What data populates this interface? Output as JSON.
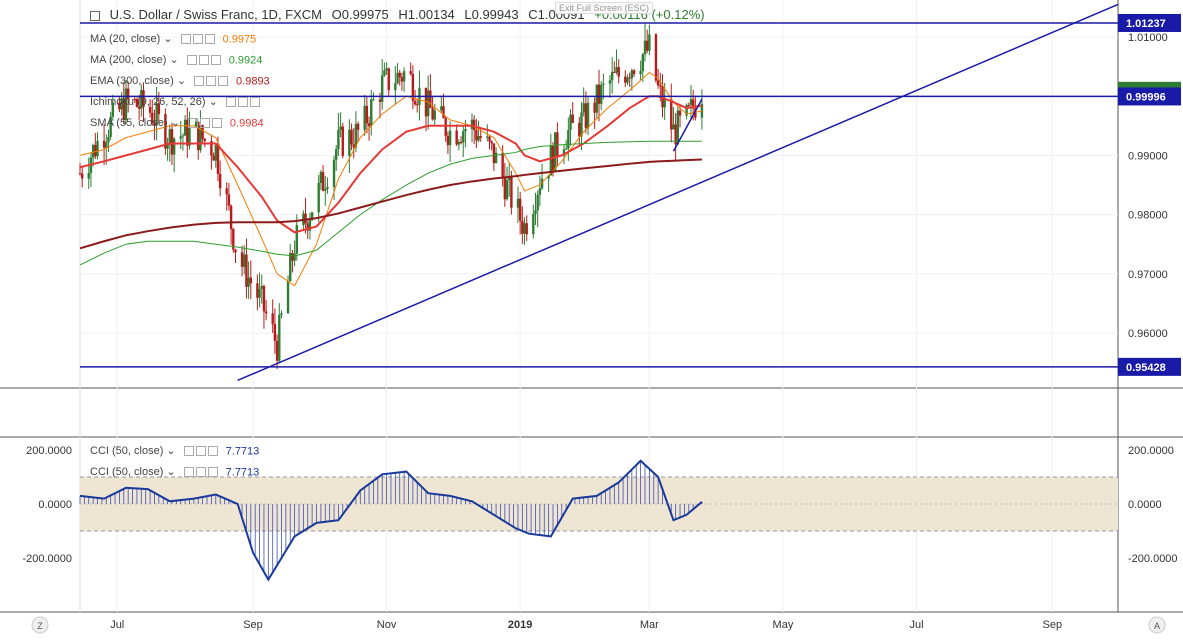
{
  "header": {
    "symbol": "U.S. Dollar / Swiss Franc, 1D, FXCM",
    "open": "O0.99975",
    "high": "H1.00134",
    "low": "L0.99943",
    "close": "C1.00091",
    "change": "+0.00116 (+0.12%)",
    "exit_hint": "Exit Full Screen (ESC)"
  },
  "studies": [
    {
      "name": "MA (20, close)",
      "value": "0.9975",
      "color": "#f57c00"
    },
    {
      "name": "MA (200, close)",
      "value": "0.9924",
      "color": "#2e9e2e"
    },
    {
      "name": "EMA (300, close)",
      "value": "0.9893",
      "color": "#b71c1c"
    },
    {
      "name": "Ichimoku (9, 26, 52, 26)",
      "value": "",
      "color": "#1e88e5"
    },
    {
      "name": "SMA (55, close)",
      "value": "0.9984",
      "color": "#e53935"
    }
  ],
  "cci_studies": [
    {
      "name": "CCI (50, close)",
      "value": "7.7713"
    },
    {
      "name": "CCI (50, close)",
      "value": "7.7713"
    }
  ],
  "price_badges": [
    {
      "label": "1.01237",
      "price": 1.01237,
      "bg": "#1a1aa8",
      "fg": "#ffffff"
    },
    {
      "label": "1.00091",
      "price": 1.00091,
      "bg": "#2e7d32",
      "fg": "#ffffff"
    },
    {
      "label": "0.99996",
      "price": 0.99996,
      "bg": "#1a1aa8",
      "fg": "#ffffff"
    },
    {
      "label": "0.95428",
      "price": 0.95428,
      "bg": "#1a1aa8",
      "fg": "#ffffff"
    }
  ],
  "axis_bottom": {
    "left_btn": "Z",
    "right_btn": "A"
  },
  "chart_data": {
    "type": "line",
    "price_axis": {
      "ticks": [
        1.01,
        1.0,
        0.99,
        0.98,
        0.97,
        0.96
      ],
      "tick_labels": [
        "1.01000",
        "1.00000",
        "0.99000",
        "0.98000",
        "0.97000",
        "0.96000"
      ]
    },
    "cci_axis": {
      "ticks": [
        200,
        0,
        -200
      ],
      "tick_labels": [
        "200.0000",
        "0.0000",
        "-200.0000"
      ],
      "band": [
        -100,
        100
      ]
    },
    "time_labels": [
      "Jul",
      "Sep",
      "Nov",
      "2019",
      "Mar",
      "May",
      "Jul",
      "Sep"
    ],
    "time_positions": [
      "2018-07-01",
      "2018-09-01",
      "2018-11-01",
      "2019-01-01",
      "2019-03-01",
      "2019-05-01",
      "2019-07-01",
      "2019-09-01"
    ],
    "horizontal_lines": [
      1.01237,
      0.99996,
      0.95428
    ],
    "trendlines": [
      {
        "from": [
          "2018-08-25",
          0.952
        ],
        "to": [
          "2019-10-01",
          1.0155
        ]
      },
      {
        "from": [
          "2019-03-12",
          0.9907
        ],
        "to": [
          "2019-03-25",
          0.9995
        ]
      }
    ],
    "close_series": {
      "dates": [
        "2018-06-14",
        "2018-06-25",
        "2018-07-05",
        "2018-07-15",
        "2018-07-25",
        "2018-08-05",
        "2018-08-15",
        "2018-08-25",
        "2018-09-05",
        "2018-09-12",
        "2018-09-20",
        "2018-09-30",
        "2018-10-10",
        "2018-10-20",
        "2018-10-30",
        "2018-11-10",
        "2018-11-20",
        "2018-11-30",
        "2018-12-10",
        "2018-12-20",
        "2018-12-30",
        "2019-01-03",
        "2019-01-10",
        "2019-01-20",
        "2019-01-30",
        "2019-02-10",
        "2019-02-20",
        "2019-03-01",
        "2019-03-05",
        "2019-03-12",
        "2019-03-18",
        "2019-03-25"
      ],
      "values": [
        0.987,
        0.994,
        0.999,
        0.998,
        0.993,
        0.994,
        0.991,
        0.973,
        0.965,
        0.958,
        0.975,
        0.983,
        0.992,
        0.994,
        1.002,
        1.004,
        0.998,
        0.994,
        0.995,
        0.99,
        0.981,
        0.978,
        0.986,
        0.993,
        0.996,
        1.002,
        1.005,
        1.008,
        1.001,
        0.994,
        0.996,
        1.0009
      ]
    },
    "series": [
      {
        "name": "MA (20, close)",
        "color": "#f57c00",
        "values": [
          0.99,
          0.991,
          0.993,
          0.994,
          0.995,
          0.995,
          0.993,
          0.985,
          0.976,
          0.97,
          0.968,
          0.975,
          0.986,
          0.993,
          0.997,
          1.0,
          0.999,
          0.996,
          0.995,
          0.993,
          0.987,
          0.984,
          0.985,
          0.989,
          0.994,
          0.998,
          1.001,
          1.004,
          1.003,
          0.999,
          0.997,
          0.9975
        ]
      },
      {
        "name": "SMA (55, close)",
        "color": "#e53935",
        "values": [
          0.988,
          0.989,
          0.99,
          0.991,
          0.992,
          0.992,
          0.992,
          0.988,
          0.983,
          0.979,
          0.977,
          0.978,
          0.982,
          0.987,
          0.991,
          0.994,
          0.995,
          0.995,
          0.995,
          0.994,
          0.992,
          0.99,
          0.989,
          0.99,
          0.992,
          0.995,
          0.998,
          1.0,
          1.0,
          0.999,
          0.998,
          0.9984
        ]
      },
      {
        "name": "MA (200, close)",
        "color": "#2e9e2e",
        "values": [
          0.9715,
          0.9735,
          0.975,
          0.9755,
          0.9755,
          0.9755,
          0.975,
          0.9745,
          0.9738,
          0.9733,
          0.973,
          0.974,
          0.977,
          0.98,
          0.9825,
          0.985,
          0.987,
          0.9885,
          0.9895,
          0.99,
          0.9905,
          0.991,
          0.9915,
          0.9918,
          0.992,
          0.9922,
          0.9923,
          0.9924,
          0.9924,
          0.9924,
          0.9924,
          0.9924
        ]
      },
      {
        "name": "EMA (300, close)",
        "color": "#8b1a1a",
        "values": [
          0.9743,
          0.9755,
          0.9765,
          0.9772,
          0.9778,
          0.9783,
          0.9786,
          0.9787,
          0.9787,
          0.9787,
          0.9789,
          0.9794,
          0.9802,
          0.9812,
          0.9822,
          0.9833,
          0.9842,
          0.985,
          0.9856,
          0.9861,
          0.9865,
          0.9867,
          0.987,
          0.9874,
          0.9878,
          0.9882,
          0.9886,
          0.9889,
          0.989,
          0.9891,
          0.9892,
          0.9893
        ]
      }
    ],
    "cci": {
      "dates": [
        "2018-06-14",
        "2018-06-25",
        "2018-07-05",
        "2018-07-15",
        "2018-07-25",
        "2018-08-05",
        "2018-08-15",
        "2018-08-25",
        "2018-09-01",
        "2018-09-08",
        "2018-09-20",
        "2018-09-30",
        "2018-10-10",
        "2018-10-20",
        "2018-10-30",
        "2018-11-10",
        "2018-11-20",
        "2018-11-30",
        "2018-12-10",
        "2018-12-20",
        "2018-12-30",
        "2019-01-05",
        "2019-01-15",
        "2019-01-25",
        "2019-02-05",
        "2019-02-15",
        "2019-02-25",
        "2019-03-05",
        "2019-03-12",
        "2019-03-18",
        "2019-03-25"
      ],
      "values": [
        30,
        20,
        60,
        55,
        10,
        20,
        35,
        0,
        -180,
        -280,
        -120,
        -70,
        -60,
        50,
        110,
        120,
        40,
        30,
        10,
        -40,
        -90,
        -110,
        -120,
        20,
        30,
        80,
        160,
        100,
        -60,
        -40,
        8
      ]
    }
  }
}
